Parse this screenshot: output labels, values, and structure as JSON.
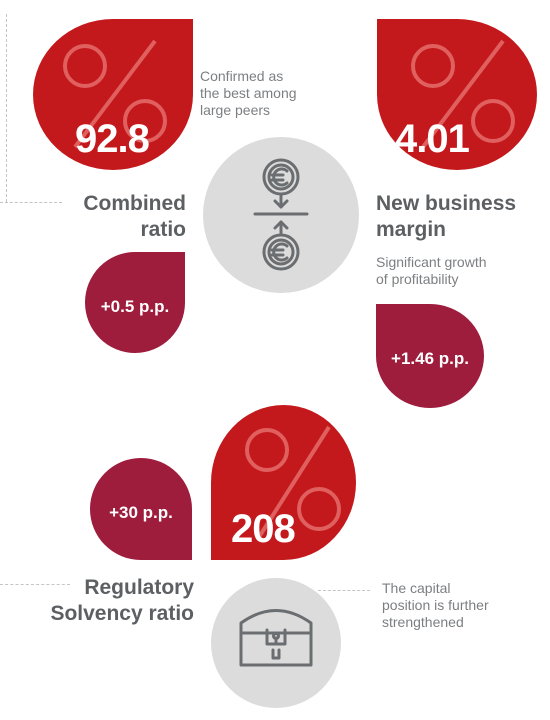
{
  "combined_ratio": {
    "value": "92.8",
    "title_line1": "Combined",
    "title_line2": "ratio",
    "change": "+0.5 p.p.",
    "note_line1": "Confirmed as",
    "note_line2": "the best among",
    "note_line3": "large peers"
  },
  "new_business_margin": {
    "value": "4.01",
    "title_line1": "New business",
    "title_line2": "margin",
    "change": "+1.46 p.p.",
    "note_line1": "Significant growth",
    "note_line2": "of profitability"
  },
  "solvency_ratio": {
    "value": "208",
    "title_line1": "Regulatory",
    "title_line2": "Solvency ratio",
    "change": "+30 p.p.",
    "note_line1": "The capital",
    "note_line2": "position is further",
    "note_line3": "strengthened"
  },
  "icons": {
    "center_top": "euro-exchange-icon",
    "center_bottom": "treasure-chest-icon",
    "watermark": "percent-icon"
  },
  "colors": {
    "red": "#c4191c",
    "maroon": "#9e1c3c",
    "grey_circle": "#dcdcdc",
    "title_text": "#5d6063",
    "note_text": "#7c7f82"
  }
}
